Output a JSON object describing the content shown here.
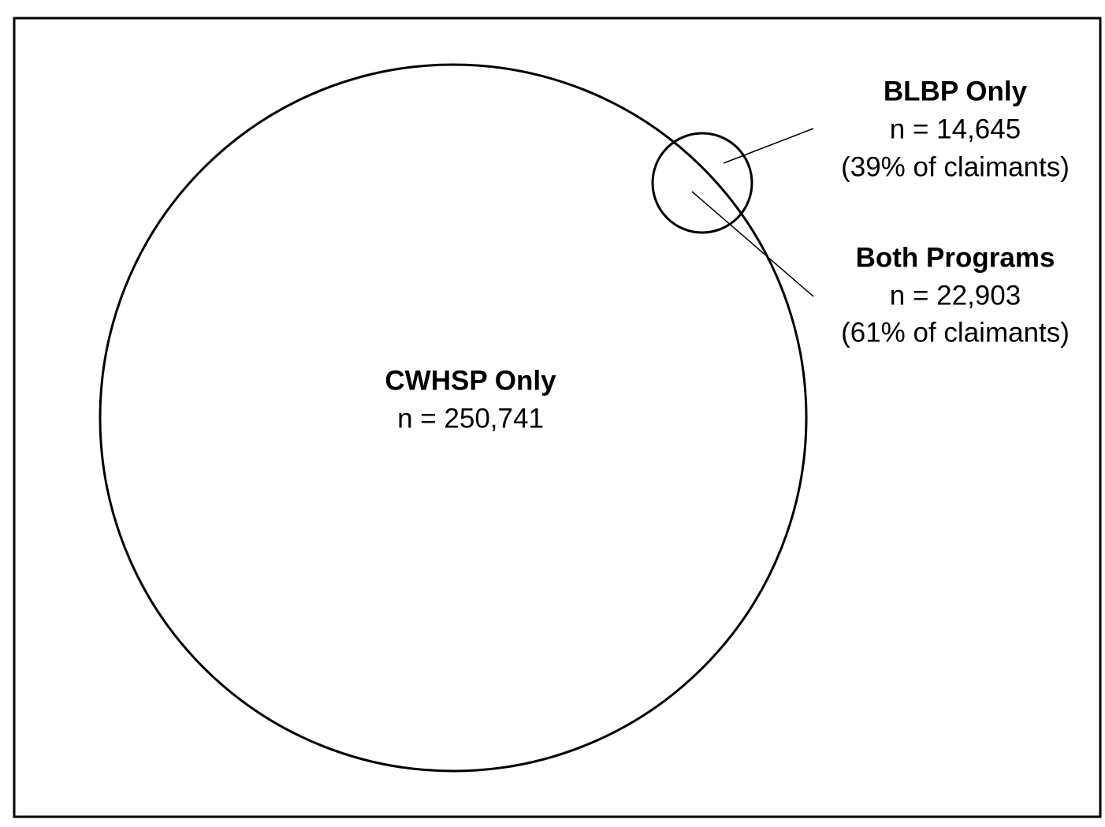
{
  "regions": [
    {
      "name": "BLBP Only",
      "count": "n = 14,645",
      "share": "(39% of claimants)"
    },
    {
      "name": "Both Programs",
      "count": "n = 22,903",
      "share": "(61% of claimants)"
    },
    {
      "name": "CWHSP Only",
      "count": "n = 250,741"
    }
  ]
}
